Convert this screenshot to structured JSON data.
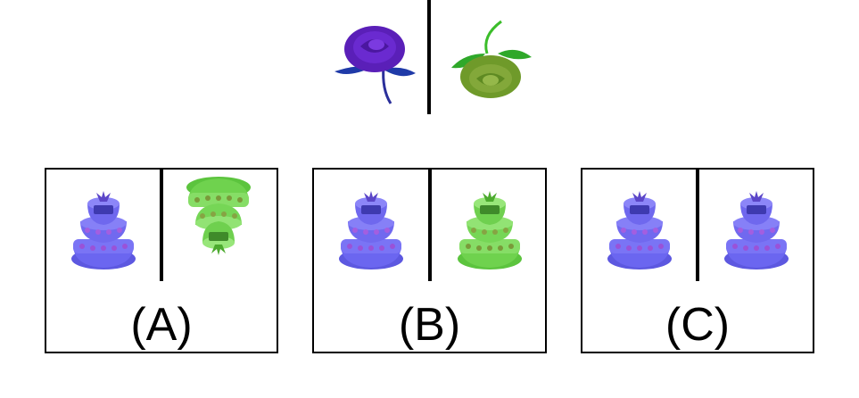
{
  "question": {
    "left_item": "purple-rose",
    "right_item": "green-rose-rotated",
    "left_color": "#5a1fb8",
    "right_color": "#6f9a2a"
  },
  "options": [
    {
      "label": "(A)",
      "left_item": "blue-cake",
      "right_item": "green-cake-inverted"
    },
    {
      "label": "(B)",
      "left_item": "blue-cake",
      "right_item": "green-cake"
    },
    {
      "label": "(C)",
      "left_item": "blue-cake",
      "right_item": "blue-cake"
    }
  ],
  "colors": {
    "cake_blue": "#6f6cf2",
    "cake_green": "#7bd85a",
    "border": "#000000"
  }
}
